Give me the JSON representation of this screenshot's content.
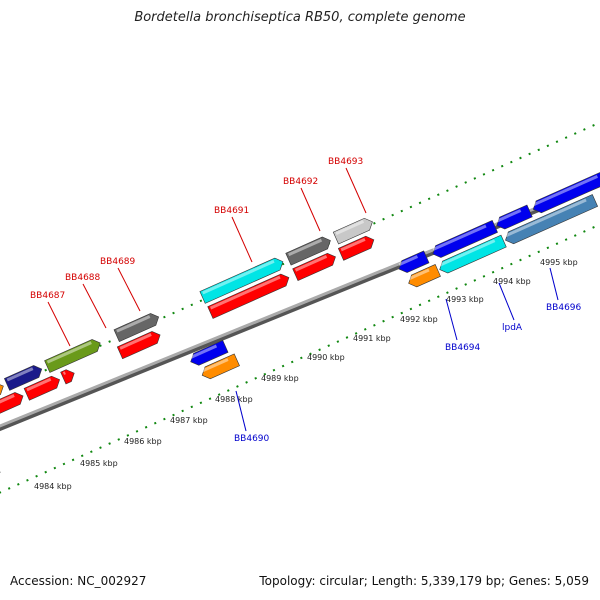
{
  "header": {
    "title": "Bordetella bronchiseptica RB50, complete genome"
  },
  "footer": {
    "accession": "Accession: NC_002927",
    "stats": "Topology: circular; Length: 5,339,179 bp; Genes: 5,059"
  },
  "axis": {
    "ticks": [
      "4984 kbp",
      "4985 kbp",
      "4986 kbp",
      "4987 kbp",
      "4988 kbp",
      "4989 kbp",
      "4990 kbp",
      "4991 kbp",
      "4992 kbp",
      "4993 kbp",
      "4994 kbp",
      "4995 kbp"
    ]
  },
  "genes": {
    "forward": [
      "BB4687",
      "BB4688",
      "BB4689",
      "BB4691",
      "BB4692",
      "BB4693"
    ],
    "reverse": [
      "BB4690",
      "BB4694",
      "lpdA",
      "BB4696"
    ]
  },
  "colors": {
    "forward_label": "#d40000",
    "reverse_label": "#0000cc",
    "cds_red": "#ff0000",
    "cds_blue": "#0000ee",
    "cds_cyan": "#00e5e5",
    "cds_orange": "#ff8c00",
    "cds_gray": "#666666",
    "cds_lightgray": "#c8c8c8",
    "cds_green": "#6a9a1a",
    "cds_steel": "#4682b4",
    "backbone": "#777777",
    "tick": "#118811"
  }
}
